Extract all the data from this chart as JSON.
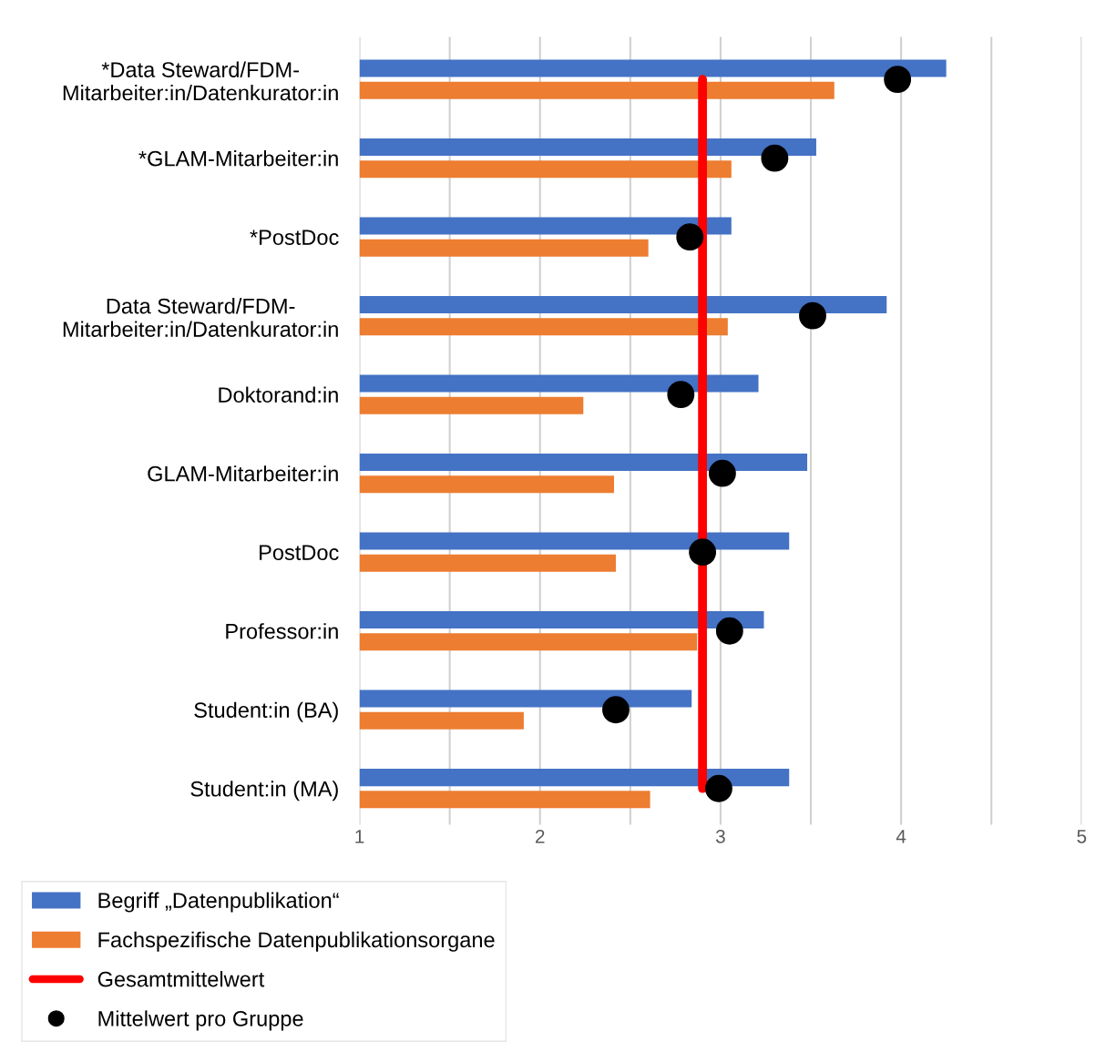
{
  "chart_data": {
    "type": "bar",
    "orientation": "horizontal",
    "categories": [
      "*Data Steward/FDM-\nMitarbeiter:in/Datenkurator:in",
      "*GLAM-Mitarbeiter:in",
      "*PostDoc",
      "Data Steward/FDM-\nMitarbeiter:in/Datenkurator:in",
      "Doktorand:in",
      "GLAM-Mitarbeiter:in",
      "PostDoc",
      "Professor:in",
      "Student:in (BA)",
      "Student:in (MA)"
    ],
    "series": [
      {
        "name": "Begriff „Datenpublikation“",
        "color": "#4472c4",
        "values": [
          4.25,
          3.53,
          3.06,
          3.92,
          3.21,
          3.48,
          3.38,
          3.24,
          2.84,
          3.38
        ]
      },
      {
        "name": "Fachspezifische Datenpublikationsorgane",
        "color": "#ed7d31",
        "values": [
          3.63,
          3.06,
          2.6,
          3.04,
          2.24,
          2.41,
          2.42,
          2.87,
          1.91,
          2.61
        ]
      },
      {
        "name": "Mittelwert pro Gruppe",
        "type": "scatter",
        "color": "#000000",
        "marker": "circle",
        "values": [
          3.98,
          3.3,
          2.83,
          3.51,
          2.78,
          3.01,
          2.9,
          3.05,
          2.42,
          2.99
        ]
      }
    ],
    "ref_lines": [
      {
        "axis": "x",
        "value": 2.9,
        "label": "Gesamtmittelwert",
        "color": "#ff0000"
      }
    ],
    "xlim": [
      1,
      5
    ],
    "xticks": [
      1,
      {
        "value": 1.5,
        "label": null
      },
      2,
      {
        "value": 2.5,
        "label": null
      },
      3,
      {
        "value": 3.5,
        "label": null
      },
      4,
      {
        "value": 4.5,
        "label": null
      },
      5
    ],
    "grid": "x",
    "legend": "bottom left"
  }
}
